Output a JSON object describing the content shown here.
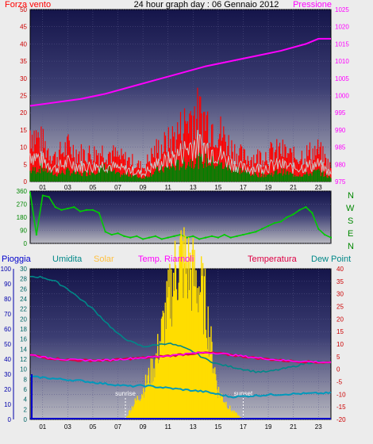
{
  "header": {
    "left_label": "Forza vento",
    "title": "24 hour graph day : 06 Gennaio 2012",
    "right_label": "Pressione"
  },
  "compass_letters": [
    "N",
    "W",
    "S",
    "E",
    "N"
  ],
  "bottom_legend": {
    "rain": "Pioggia",
    "humidity": "Umidita",
    "solar": "Solar",
    "temp_riarnoli": "Temp. Riarnoli",
    "temperature": "Temperatura",
    "dewpoint": "Dew Point"
  },
  "annotations": {
    "sunrise": "sunrise",
    "sunset": "sunset"
  },
  "time_labels": [
    "01",
    "03",
    "05",
    "07",
    "09",
    "11",
    "13",
    "15",
    "17",
    "19",
    "21",
    "23"
  ],
  "colors": {
    "wind_gust": "#ff0000",
    "wind_avg": "#008000",
    "wind_line": "#c8c8c8",
    "pressure": "#ff00ff",
    "direction": "#00cc00",
    "rain": "#0000cc",
    "humidity": "#008888",
    "solar": "#ffdd00",
    "temp_riarnoli": "#ff00ff",
    "temperature": "#dd0044",
    "dewpoint": "#0099bb"
  },
  "chart_data": [
    {
      "type": "line",
      "name": "wind-pressure",
      "x_hours": [
        0,
        24
      ],
      "ylim_left": [
        0,
        50
      ],
      "yticks_left": [
        "0",
        "5",
        "10",
        "15",
        "20",
        "25",
        "30",
        "35",
        "40",
        "45",
        "50"
      ],
      "ylim_right": [
        975,
        1025
      ],
      "yticks_right": [
        "975",
        "980",
        "985",
        "990",
        "995",
        "1000",
        "1005",
        "1010",
        "1015",
        "1020",
        "1025"
      ],
      "series": [
        {
          "key": "pressure",
          "x": [
            0,
            2,
            4,
            6,
            8,
            10,
            12,
            14,
            16,
            18,
            20,
            22,
            23,
            24
          ],
          "values": [
            997,
            998,
            999,
            1000.5,
            1002.5,
            1004.5,
            1006.5,
            1008.5,
            1010,
            1011.5,
            1013,
            1015,
            1016.5,
            1016.5
          ]
        },
        {
          "key": "wind_gust",
          "x": [
            0,
            1,
            2,
            3,
            4,
            5,
            6,
            7,
            8,
            9,
            10,
            11,
            12,
            13,
            14,
            15,
            16,
            17,
            18,
            19,
            20,
            21,
            22,
            23,
            24
          ],
          "values": [
            15,
            11,
            7,
            10,
            8,
            8,
            9,
            7,
            6,
            4,
            9,
            11,
            15,
            20,
            18,
            15,
            10,
            7,
            7,
            8,
            9,
            7,
            8,
            9,
            4
          ]
        },
        {
          "key": "wind_avg",
          "x": [
            0,
            1,
            2,
            3,
            4,
            5,
            6,
            7,
            8,
            9,
            10,
            11,
            12,
            13,
            14,
            15,
            16,
            17,
            18,
            19,
            20,
            21,
            22,
            23,
            24
          ],
          "values": [
            3,
            4,
            2,
            3,
            2,
            3,
            4,
            2,
            2,
            1,
            3,
            4,
            5,
            6,
            6,
            5,
            4,
            3,
            2,
            2,
            3,
            2,
            2,
            3,
            1
          ]
        }
      ]
    },
    {
      "type": "scatter",
      "name": "wind-direction",
      "ylim": [
        0,
        360
      ],
      "yticks": [
        "0",
        "90",
        "180",
        "270",
        "360"
      ],
      "series": [
        {
          "key": "direction",
          "x": [
            0,
            0.5,
            1,
            1.5,
            2,
            2.5,
            3,
            3.5,
            4,
            4.5,
            5,
            5.5,
            6,
            6.5,
            7,
            7.5,
            8,
            8.5,
            9,
            9.5,
            10,
            10.5,
            11,
            11.5,
            12,
            12.5,
            13,
            13.5,
            14,
            14.5,
            15,
            15.5,
            16,
            16.5,
            17,
            17.5,
            18,
            18.5,
            19,
            19.5,
            20,
            20.5,
            21,
            21.5,
            22,
            22.5,
            23,
            23.5,
            24
          ],
          "values": [
            350,
            60,
            330,
            320,
            250,
            230,
            240,
            250,
            220,
            230,
            230,
            210,
            80,
            60,
            70,
            50,
            40,
            50,
            30,
            40,
            50,
            30,
            40,
            50,
            60,
            40,
            50,
            30,
            40,
            50,
            40,
            60,
            40,
            50,
            60,
            70,
            80,
            100,
            120,
            140,
            150,
            180,
            200,
            230,
            250,
            210,
            100,
            60,
            40
          ]
        }
      ]
    },
    {
      "type": "line",
      "name": "rain-humidity-temperature",
      "ylim_rain": [
        0,
        100
      ],
      "yticks_rain": [
        "0",
        "10",
        "20",
        "30",
        "40",
        "50",
        "60",
        "70",
        "80",
        "90",
        "100"
      ],
      "ylim_humidity": [
        0,
        30
      ],
      "yticks_humidity": [
        "0",
        "2",
        "4",
        "6",
        "8",
        "10",
        "12",
        "14",
        "16",
        "18",
        "20",
        "22",
        "24",
        "26",
        "28",
        "30"
      ],
      "ylim_temp": [
        -20,
        40
      ],
      "yticks_temp": [
        "-20",
        "-15",
        "-10",
        "-5",
        "0",
        "5",
        "10",
        "15",
        "20",
        "25",
        "30",
        "35",
        "40"
      ],
      "sunrise_hour": 7.6,
      "sunset_hour": 17.0,
      "series": [
        {
          "key": "humidity",
          "x": [
            0,
            1,
            2,
            3,
            4,
            5,
            6,
            7,
            8,
            9,
            10,
            11,
            12,
            13,
            14,
            15,
            16,
            17,
            18,
            19,
            20,
            21,
            22,
            23,
            24
          ],
          "values": [
            28.5,
            28.3,
            27.5,
            26,
            24,
            22,
            19.5,
            17,
            15.5,
            14.5,
            14.8,
            15.2,
            14.5,
            13.5,
            12,
            11,
            10.5,
            10,
            9.5,
            9.5,
            10,
            10.5,
            11.2,
            11.5,
            11.3
          ]
        },
        {
          "key": "solar",
          "x": [
            7.6,
            8,
            9,
            10,
            10.5,
            11,
            11.5,
            12,
            12.5,
            13,
            13.5,
            14,
            14.5,
            15,
            16,
            17
          ],
          "values": [
            0,
            2,
            6,
            12,
            18,
            24,
            30,
            34,
            32,
            30,
            28,
            24,
            14,
            6,
            2,
            0
          ]
        },
        {
          "key": "temp_riarnoli",
          "x": [
            0,
            1,
            2,
            3,
            4,
            5,
            6,
            7,
            8,
            9,
            10,
            11,
            12,
            13,
            14,
            15,
            16,
            17,
            18,
            19,
            20,
            21,
            22,
            23,
            24
          ],
          "values": [
            6,
            4.8,
            4.3,
            3.8,
            3.6,
            3.6,
            3.6,
            3.9,
            4.3,
            4.6,
            5,
            5.4,
            5.9,
            6.4,
            6.6,
            6.4,
            5.8,
            5.2,
            4.6,
            4.1,
            3.6,
            3.3,
            3.1,
            2.9,
            2.7
          ]
        },
        {
          "key": "temperature",
          "x": [
            0,
            1,
            2,
            3,
            4,
            5,
            6,
            7,
            8,
            9,
            10,
            11,
            12,
            13,
            14,
            15,
            16,
            17,
            18,
            19,
            20,
            21,
            22,
            23,
            24
          ],
          "values": [
            5.8,
            4.7,
            4.2,
            3.7,
            3.5,
            3.5,
            3.5,
            3.8,
            4.2,
            4.5,
            4.9,
            5.3,
            5.8,
            6.3,
            6.5,
            6.3,
            5.7,
            5.1,
            4.5,
            4.0,
            3.5,
            3.2,
            3.0,
            2.8,
            2.6
          ]
        },
        {
          "key": "dewpoint",
          "x": [
            0,
            1,
            2,
            3,
            4,
            5,
            6,
            7,
            8,
            9,
            10,
            11,
            12,
            13,
            14,
            15,
            16,
            17,
            18,
            19,
            20,
            21,
            22,
            23,
            24
          ],
          "values": [
            -3,
            -3.3,
            -3.8,
            -4.2,
            -4.6,
            -5.2,
            -5.8,
            -6.3,
            -6.8,
            -6.5,
            -7,
            -7.5,
            -8,
            -8.5,
            -9,
            -10,
            -11,
            -10.8,
            -10.5,
            -10.2,
            -10,
            -9.8,
            -9.7,
            -9.6,
            -9.5
          ]
        },
        {
          "key": "rain",
          "x": [
            0,
            0.3,
            24
          ],
          "values": [
            0,
            0,
            0
          ]
        }
      ]
    }
  ]
}
